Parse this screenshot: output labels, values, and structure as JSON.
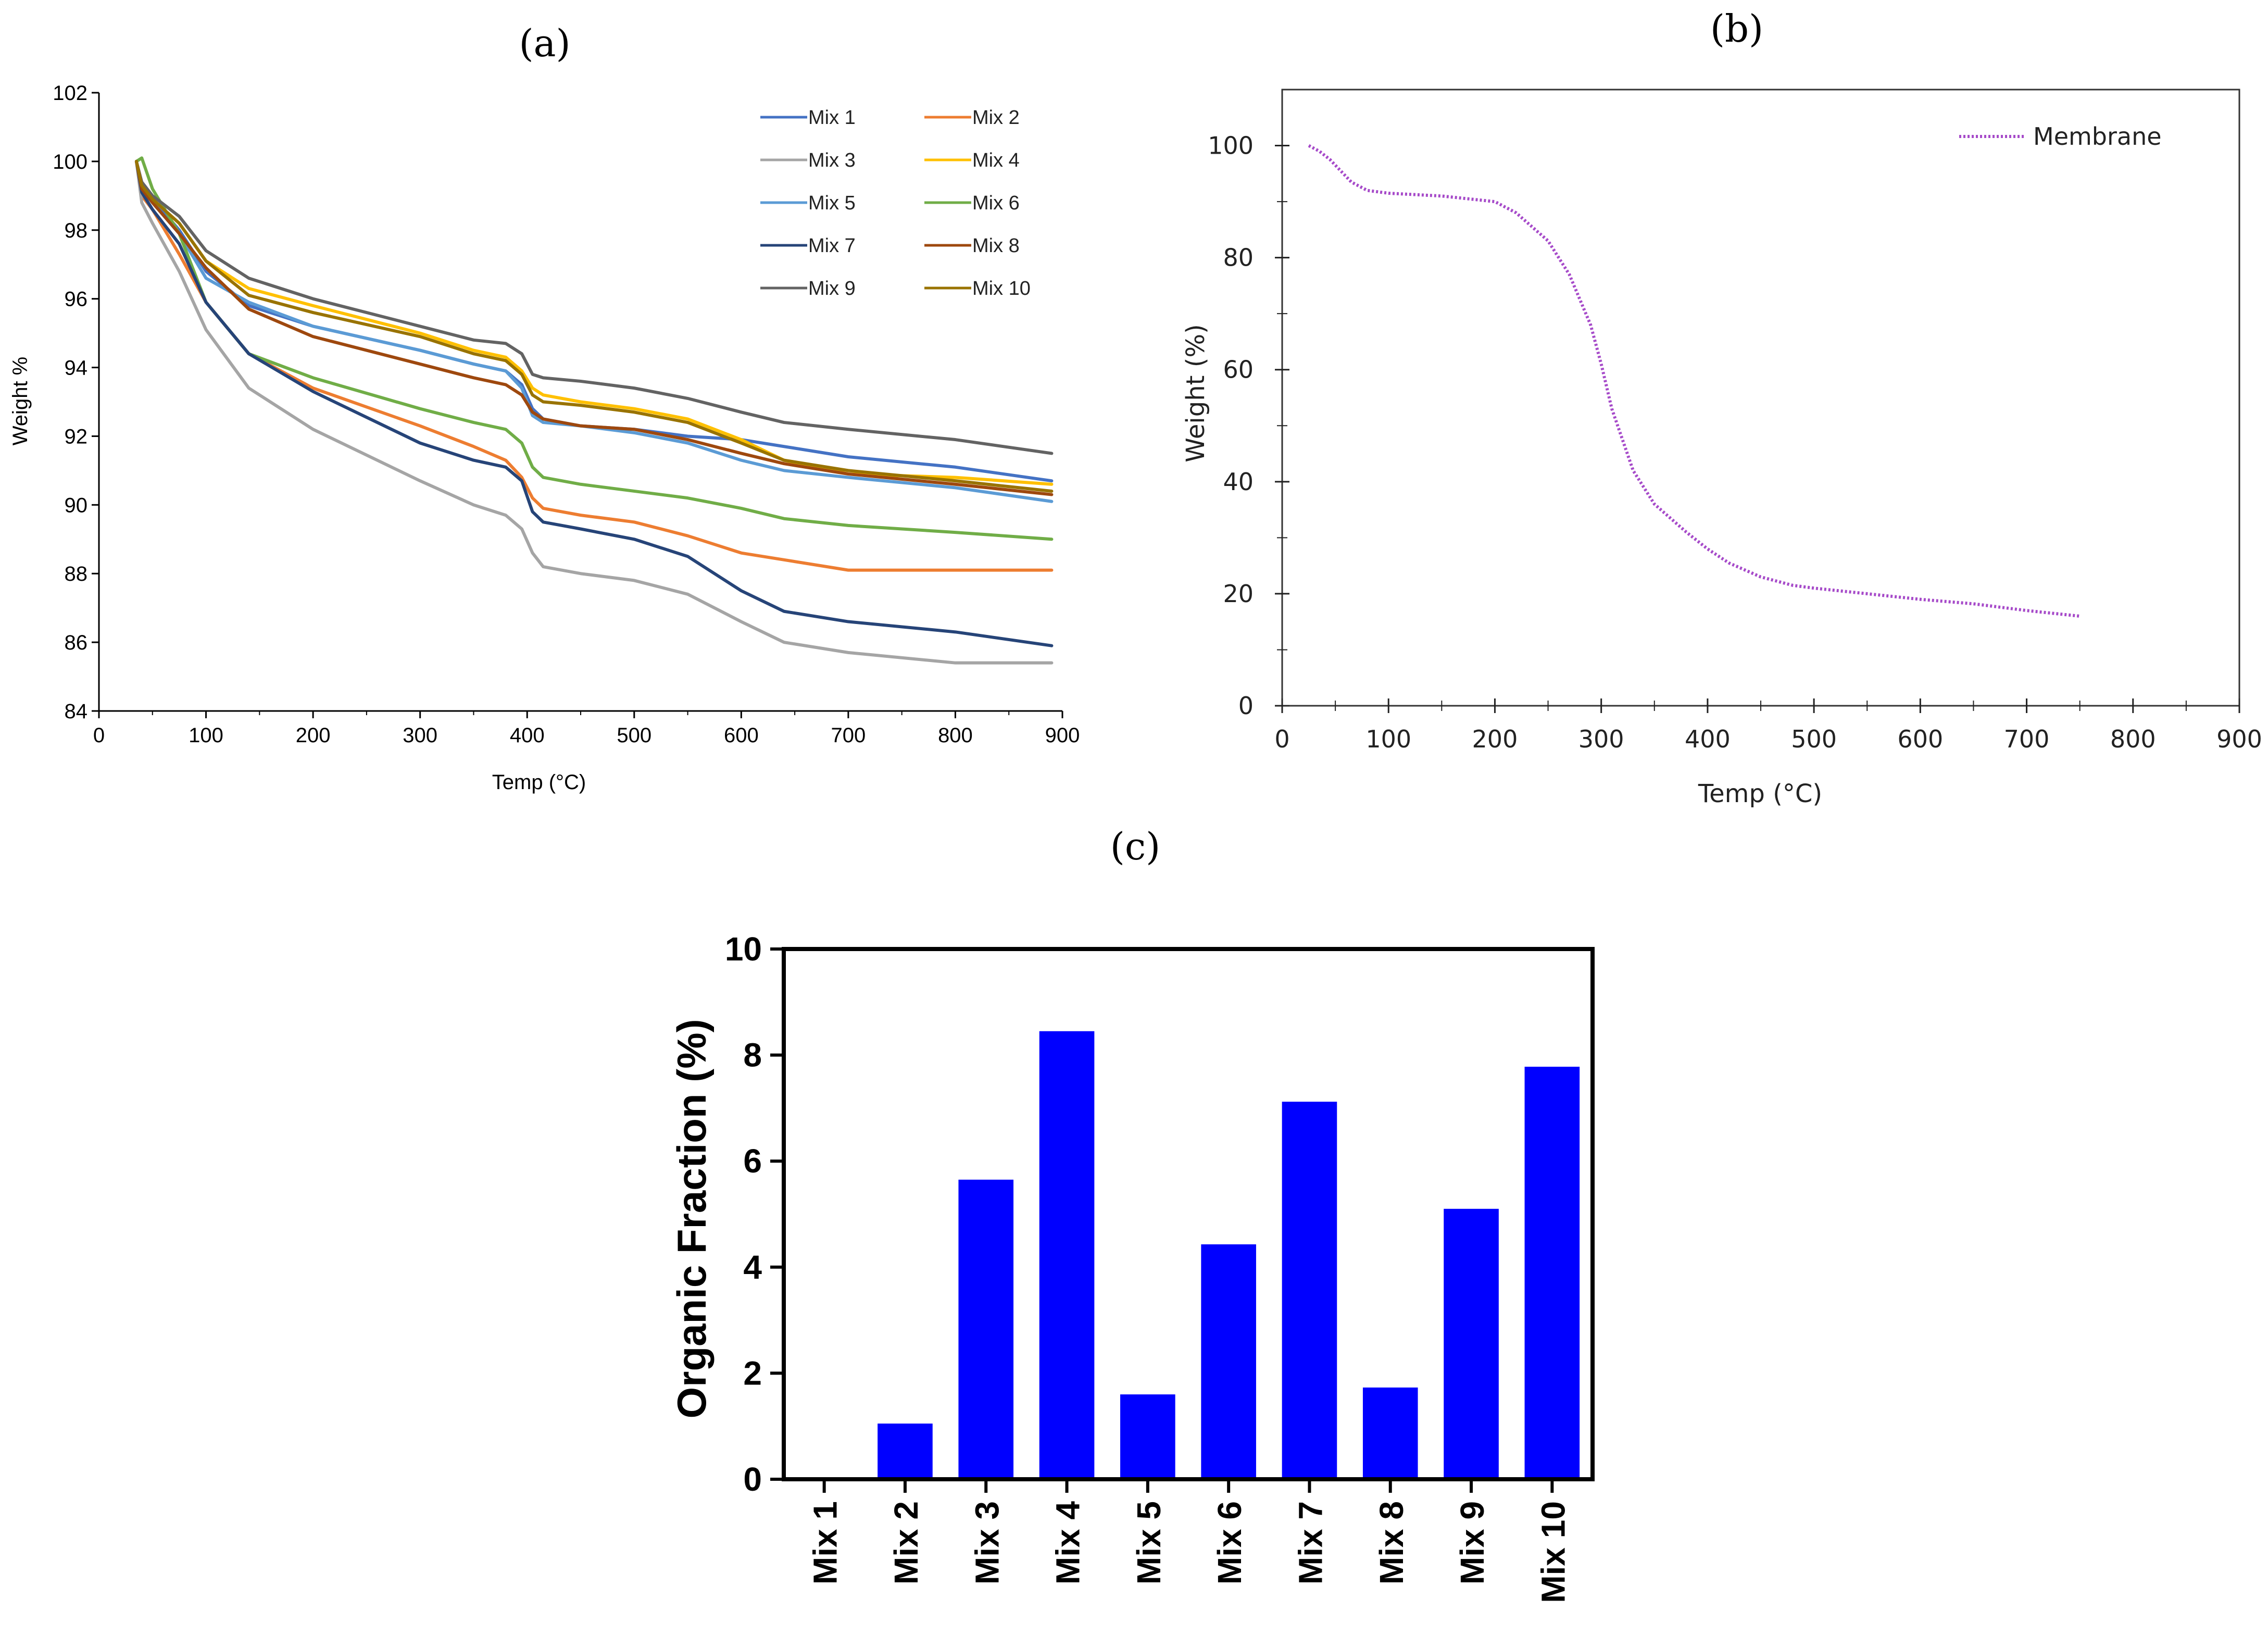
{
  "chart_data": [
    {
      "panel": "(a)",
      "type": "line",
      "xlabel": "Temp (°C)",
      "ylabel": "Weight %",
      "xlim": [
        0,
        900
      ],
      "ylim": [
        84,
        102
      ],
      "xticks": [
        0,
        100,
        200,
        300,
        400,
        500,
        600,
        700,
        800,
        900
      ],
      "yticks": [
        84,
        86,
        88,
        90,
        92,
        94,
        96,
        98,
        100,
        102
      ],
      "legend": "top-right",
      "x": [
        35,
        40,
        50,
        75,
        100,
        140,
        200,
        300,
        350,
        380,
        395,
        405,
        415,
        450,
        500,
        550,
        600,
        640,
        700,
        800,
        890
      ],
      "series": [
        {
          "name": "Mix 1",
          "color": "#4472C4",
          "values": [
            100,
            99.3,
            98.9,
            98.0,
            96.8,
            95.8,
            95.2,
            94.5,
            94.1,
            93.9,
            93.5,
            92.8,
            92.5,
            92.3,
            92.2,
            92.0,
            91.9,
            91.7,
            91.4,
            91.1,
            90.7
          ]
        },
        {
          "name": "Mix 2",
          "color": "#ED7D31",
          "values": [
            100,
            99.0,
            98.6,
            97.3,
            95.9,
            94.4,
            93.4,
            92.3,
            91.7,
            91.3,
            90.8,
            90.2,
            89.9,
            89.7,
            89.5,
            89.1,
            88.6,
            88.4,
            88.1,
            88.1,
            88.1
          ]
        },
        {
          "name": "Mix 3",
          "color": "#A5A5A5",
          "values": [
            100,
            98.8,
            98.2,
            96.8,
            95.1,
            93.4,
            92.2,
            90.7,
            90.0,
            89.7,
            89.3,
            88.6,
            88.2,
            88.0,
            87.8,
            87.4,
            86.6,
            86.0,
            85.7,
            85.4,
            85.4
          ]
        },
        {
          "name": "Mix 4",
          "color": "#FFC000",
          "values": [
            100,
            99.3,
            98.9,
            98.2,
            97.1,
            96.3,
            95.8,
            95.0,
            94.5,
            94.3,
            93.9,
            93.4,
            93.2,
            93.0,
            92.8,
            92.5,
            91.9,
            91.3,
            90.9,
            90.8,
            90.6
          ]
        },
        {
          "name": "Mix 5",
          "color": "#5B9BD5",
          "values": [
            100,
            99.2,
            98.8,
            97.9,
            96.6,
            95.9,
            95.2,
            94.5,
            94.1,
            93.9,
            93.4,
            92.6,
            92.4,
            92.3,
            92.1,
            91.8,
            91.3,
            91.0,
            90.8,
            90.5,
            90.1
          ]
        },
        {
          "name": "Mix 6",
          "color": "#70AD47",
          "values": [
            100,
            100.1,
            99.2,
            97.9,
            95.9,
            94.4,
            93.7,
            92.8,
            92.4,
            92.2,
            91.8,
            91.1,
            90.8,
            90.6,
            90.4,
            90.2,
            89.9,
            89.6,
            89.4,
            89.2,
            89.0
          ]
        },
        {
          "name": "Mix 7",
          "color": "#264478",
          "values": [
            100,
            99.1,
            98.6,
            97.6,
            95.9,
            94.4,
            93.3,
            91.8,
            91.3,
            91.1,
            90.7,
            89.8,
            89.5,
            89.3,
            89.0,
            88.5,
            87.5,
            86.9,
            86.6,
            86.3,
            85.9
          ]
        },
        {
          "name": "Mix 8",
          "color": "#9E480E",
          "values": [
            100,
            99.2,
            98.8,
            97.9,
            96.9,
            95.7,
            94.9,
            94.1,
            93.7,
            93.5,
            93.2,
            92.7,
            92.5,
            92.3,
            92.2,
            91.9,
            91.5,
            91.2,
            90.9,
            90.6,
            90.3
          ]
        },
        {
          "name": "Mix 9",
          "color": "#636363",
          "values": [
            100,
            99.4,
            99.0,
            98.4,
            97.4,
            96.6,
            96.0,
            95.2,
            94.8,
            94.7,
            94.4,
            93.8,
            93.7,
            93.6,
            93.4,
            93.1,
            92.7,
            92.4,
            92.2,
            91.9,
            91.5
          ]
        },
        {
          "name": "Mix 10",
          "color": "#997300",
          "values": [
            100,
            99.3,
            98.9,
            98.2,
            97.1,
            96.1,
            95.6,
            94.9,
            94.4,
            94.2,
            93.8,
            93.2,
            93.0,
            92.9,
            92.7,
            92.4,
            91.8,
            91.3,
            91.0,
            90.7,
            90.4
          ]
        }
      ]
    },
    {
      "panel": "(b)",
      "type": "line",
      "xlabel": "Temp (°C)",
      "ylabel": "Weight (%)",
      "xlim": [
        0,
        900
      ],
      "ylim": [
        0,
        110
      ],
      "xticks": [
        0,
        100,
        200,
        300,
        400,
        500,
        600,
        700,
        800,
        900
      ],
      "yticks": [
        0,
        20,
        40,
        60,
        80,
        100
      ],
      "legend": "top-right",
      "x": [
        25,
        35,
        45,
        55,
        65,
        80,
        100,
        150,
        200,
        220,
        250,
        270,
        290,
        300,
        310,
        330,
        350,
        380,
        400,
        420,
        450,
        480,
        500,
        550,
        600,
        650,
        700,
        750
      ],
      "series": [
        {
          "name": "Membrane",
          "color": "#A64AC9",
          "values": [
            100,
            99,
            97.5,
            95.5,
            93.5,
            92,
            91.5,
            91,
            90,
            88,
            83,
            77,
            68,
            61,
            53,
            42,
            36,
            31,
            28,
            25.5,
            23,
            21.5,
            21,
            20,
            19,
            18.2,
            17,
            16
          ]
        }
      ]
    },
    {
      "panel": "(c)",
      "type": "bar",
      "xlabel": "",
      "ylabel": "Organic Fraction (%)",
      "ylim": [
        0,
        10
      ],
      "yticks": [
        0,
        2,
        4,
        6,
        8,
        10
      ],
      "color": "#0000FF",
      "categories": [
        "Mix 1",
        "Mix 2",
        "Mix 3",
        "Mix 4",
        "Mix 5",
        "Mix 6",
        "Mix 7",
        "Mix 8",
        "Mix 9",
        "Mix 10"
      ],
      "values": [
        0,
        1.05,
        5.65,
        8.45,
        1.6,
        4.43,
        7.12,
        1.73,
        5.1,
        7.78
      ]
    }
  ]
}
